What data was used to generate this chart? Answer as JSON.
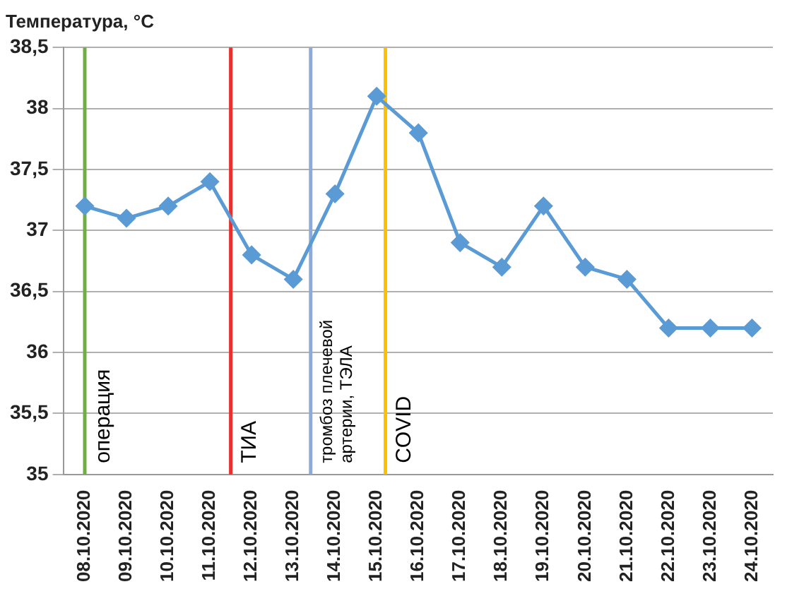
{
  "chart_data": {
    "type": "line",
    "ylabel": "Температура, °C",
    "x": [
      "2020-10-08",
      "2020-10-09",
      "2020-10-10",
      "2020-10-11",
      "2020-10-12",
      "2020-10-13",
      "2020-10-14",
      "2020-10-15",
      "2020-10-16",
      "2020-10-17",
      "2020-10-18",
      "2020-10-19",
      "2020-10-20",
      "2020-10-21",
      "2020-10-22",
      "2020-10-23",
      "2020-10-24"
    ],
    "series": [
      {
        "color": "#5b9bd5",
        "values": [
          37.2,
          37.1,
          37.2,
          37.4,
          36.8,
          36.6,
          37.3,
          38.1,
          37.8,
          36.9,
          36.7,
          37.2,
          36.7,
          36.6,
          36.2,
          36.2,
          36.2
        ]
      }
    ],
    "marker": "diamond",
    "grid": "y",
    "legend": false,
    "xlim": [
      "2020-10-07T12:00",
      "2020-10-24T12:00"
    ],
    "xticks": [
      {
        "value": "2020-10-08",
        "label": "08.10.2020"
      },
      {
        "value": "2020-10-09",
        "label": "09.10.2020"
      },
      {
        "value": "2020-10-10",
        "label": "10.10.2020"
      },
      {
        "value": "2020-10-11",
        "label": "11.10.2020"
      },
      {
        "value": "2020-10-12",
        "label": "12.10.2020"
      },
      {
        "value": "2020-10-13",
        "label": "13.10.2020"
      },
      {
        "value": "2020-10-14",
        "label": "14.10.2020"
      },
      {
        "value": "2020-10-15",
        "label": "15.10.2020"
      },
      {
        "value": "2020-10-16",
        "label": "16.10.2020"
      },
      {
        "value": "2020-10-17",
        "label": "17.10.2020"
      },
      {
        "value": "2020-10-18",
        "label": "18.10.2020"
      },
      {
        "value": "2020-10-19",
        "label": "19.10.2020"
      },
      {
        "value": "2020-10-20",
        "label": "20.10.2020"
      },
      {
        "value": "2020-10-21",
        "label": "21.10.2020"
      },
      {
        "value": "2020-10-22",
        "label": "22.10.2020"
      },
      {
        "value": "2020-10-23",
        "label": "23.10.2020"
      },
      {
        "value": "2020-10-24",
        "label": "24.10.2020"
      }
    ],
    "ylim": [
      35,
      38.5
    ],
    "yticks": [
      35,
      {
        "value": 35.5,
        "label": "35,5"
      },
      36,
      {
        "value": 36.5,
        "label": "36,5"
      },
      37,
      {
        "value": 37.5,
        "label": "37,5"
      },
      38,
      {
        "value": 38.5,
        "label": "38,5"
      }
    ],
    "ref_lines": [
      {
        "axis": "x",
        "value": "2020-10-08",
        "label": "операция",
        "color": "#70ad47"
      },
      {
        "axis": "x",
        "value": "2020-10-11T12:00",
        "label": "ТИА",
        "color": "#e8312f"
      },
      {
        "axis": "x",
        "value": "2020-10-13T10:00",
        "label": "тромбоз плечевой артерии, ТЭЛА",
        "color": "#8eaadb"
      },
      {
        "axis": "x",
        "value": "2020-10-15T05:00",
        "label": "COVID",
        "color": "#ffc000"
      }
    ]
  }
}
